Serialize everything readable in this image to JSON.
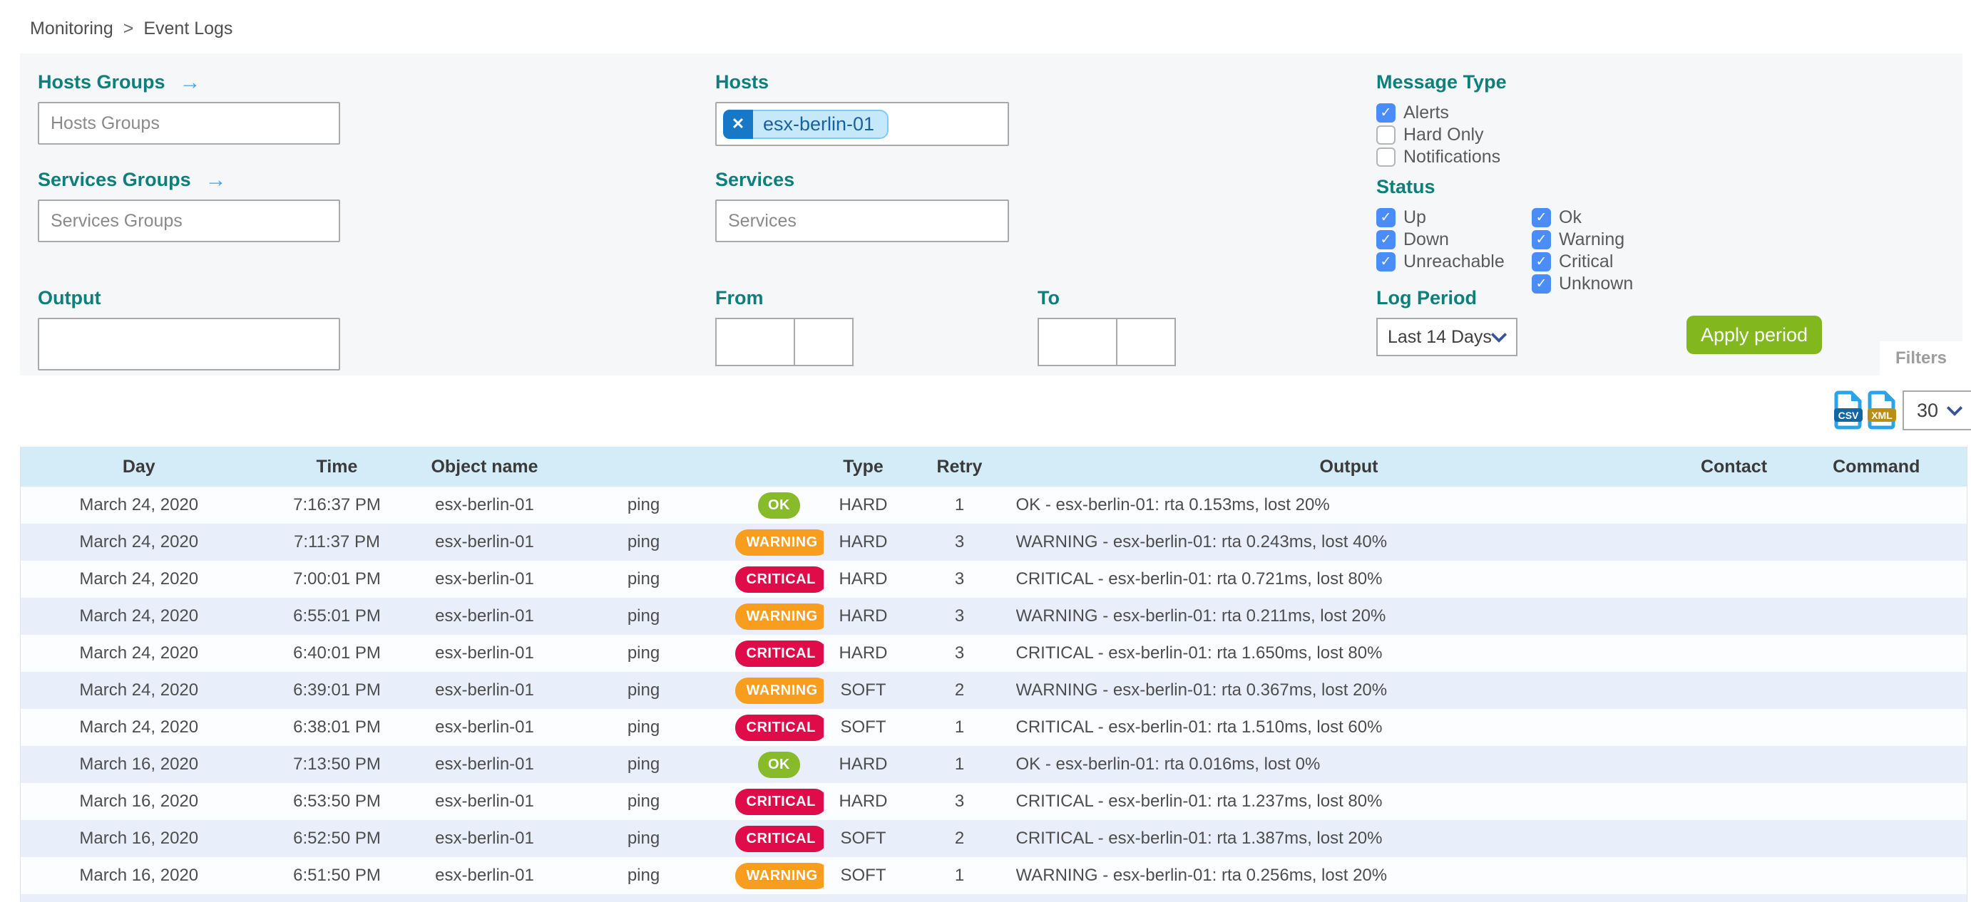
{
  "breadcrumb": {
    "home": "Monitoring",
    "separator": ">",
    "current": "Event Logs"
  },
  "filters": {
    "hosts_groups": {
      "label": "Hosts Groups",
      "placeholder": "Hosts Groups"
    },
    "services_groups": {
      "label": "Services Groups",
      "placeholder": "Services Groups"
    },
    "hosts": {
      "label": "Hosts",
      "selected": [
        {
          "text": "esx-berlin-01",
          "remove_glyph": "✕"
        }
      ]
    },
    "services": {
      "label": "Services",
      "placeholder": "Services"
    },
    "output": {
      "label": "Output",
      "value": ""
    },
    "from": {
      "label": "From",
      "date": "",
      "time": ""
    },
    "to": {
      "label": "To",
      "date": "",
      "time": ""
    },
    "message_type": {
      "label": "Message Type",
      "options": [
        {
          "label": "Alerts",
          "checked": true
        },
        {
          "label": "Hard Only",
          "checked": false
        },
        {
          "label": "Notifications",
          "checked": false
        }
      ]
    },
    "status": {
      "label": "Status",
      "columns": [
        [
          {
            "label": "Up",
            "checked": true
          },
          {
            "label": "Down",
            "checked": true
          },
          {
            "label": "Unreachable",
            "checked": true
          }
        ],
        [
          {
            "label": "Ok",
            "checked": true
          },
          {
            "label": "Warning",
            "checked": true
          },
          {
            "label": "Critical",
            "checked": true
          },
          {
            "label": "Unknown",
            "checked": true
          }
        ]
      ]
    },
    "log_period": {
      "label": "Log Period",
      "selected": "Last 14 Days"
    },
    "apply_button_label": "Apply period",
    "filters_tab_label": "Filters"
  },
  "toolbar": {
    "csv_icon_label": "CSV",
    "xml_icon_label": "XML",
    "rows_per_page": "30"
  },
  "table": {
    "headers": {
      "day": "Day",
      "time": "Time",
      "object": "Object name",
      "service": "",
      "status": "",
      "type": "Type",
      "retry": "Retry",
      "output": "Output",
      "contact": "Contact",
      "command": "Command"
    },
    "rows": [
      {
        "day": "March 24, 2020",
        "time": "7:16:37 PM",
        "object": "esx-berlin-01",
        "service": "ping",
        "status": "OK",
        "type": "HARD",
        "retry": "1",
        "output": "OK - esx-berlin-01: rta 0.153ms, lost 20%",
        "contact": "",
        "command": ""
      },
      {
        "day": "March 24, 2020",
        "time": "7:11:37 PM",
        "object": "esx-berlin-01",
        "service": "ping",
        "status": "WARNING",
        "type": "HARD",
        "retry": "3",
        "output": "WARNING - esx-berlin-01: rta 0.243ms, lost 40%",
        "contact": "",
        "command": ""
      },
      {
        "day": "March 24, 2020",
        "time": "7:00:01 PM",
        "object": "esx-berlin-01",
        "service": "ping",
        "status": "CRITICAL",
        "type": "HARD",
        "retry": "3",
        "output": "CRITICAL - esx-berlin-01: rta 0.721ms, lost 80%",
        "contact": "",
        "command": ""
      },
      {
        "day": "March 24, 2020",
        "time": "6:55:01 PM",
        "object": "esx-berlin-01",
        "service": "ping",
        "status": "WARNING",
        "type": "HARD",
        "retry": "3",
        "output": "WARNING - esx-berlin-01: rta 0.211ms, lost 20%",
        "contact": "",
        "command": ""
      },
      {
        "day": "March 24, 2020",
        "time": "6:40:01 PM",
        "object": "esx-berlin-01",
        "service": "ping",
        "status": "CRITICAL",
        "type": "HARD",
        "retry": "3",
        "output": "CRITICAL - esx-berlin-01: rta 1.650ms, lost 80%",
        "contact": "",
        "command": ""
      },
      {
        "day": "March 24, 2020",
        "time": "6:39:01 PM",
        "object": "esx-berlin-01",
        "service": "ping",
        "status": "WARNING",
        "type": "SOFT",
        "retry": "2",
        "output": "WARNING - esx-berlin-01: rta 0.367ms, lost 20%",
        "contact": "",
        "command": ""
      },
      {
        "day": "March 24, 2020",
        "time": "6:38:01 PM",
        "object": "esx-berlin-01",
        "service": "ping",
        "status": "CRITICAL",
        "type": "SOFT",
        "retry": "1",
        "output": "CRITICAL - esx-berlin-01: rta 1.510ms, lost 60%",
        "contact": "",
        "command": ""
      },
      {
        "day": "March 16, 2020",
        "time": "7:13:50 PM",
        "object": "esx-berlin-01",
        "service": "ping",
        "status": "OK",
        "type": "HARD",
        "retry": "1",
        "output": "OK - esx-berlin-01: rta 0.016ms, lost 0%",
        "contact": "",
        "command": ""
      },
      {
        "day": "March 16, 2020",
        "time": "6:53:50 PM",
        "object": "esx-berlin-01",
        "service": "ping",
        "status": "CRITICAL",
        "type": "HARD",
        "retry": "3",
        "output": "CRITICAL - esx-berlin-01: rta 1.237ms, lost 80%",
        "contact": "",
        "command": ""
      },
      {
        "day": "March 16, 2020",
        "time": "6:52:50 PM",
        "object": "esx-berlin-01",
        "service": "ping",
        "status": "CRITICAL",
        "type": "SOFT",
        "retry": "2",
        "output": "CRITICAL - esx-berlin-01: rta 1.387ms, lost 20%",
        "contact": "",
        "command": ""
      },
      {
        "day": "March 16, 2020",
        "time": "6:51:50 PM",
        "object": "esx-berlin-01",
        "service": "ping",
        "status": "WARNING",
        "type": "SOFT",
        "retry": "1",
        "output": "WARNING - esx-berlin-01: rta 0.256ms, lost 20%",
        "contact": "",
        "command": ""
      }
    ]
  },
  "colors": {
    "accent_teal": "#0e7f7a",
    "link_blue": "#42a5f5",
    "checkbox_blue": "#4b8df8",
    "ok_green": "#87bb2a",
    "warning_orange": "#f89d1e",
    "critical_red": "#e00b49",
    "apply_green": "#82b71e",
    "table_header_blue": "#d4ecf8",
    "row_alt_blue": "#e9eefb",
    "chip_blue_bg": "#c5e8fb",
    "chip_button_blue": "#1878c8"
  }
}
